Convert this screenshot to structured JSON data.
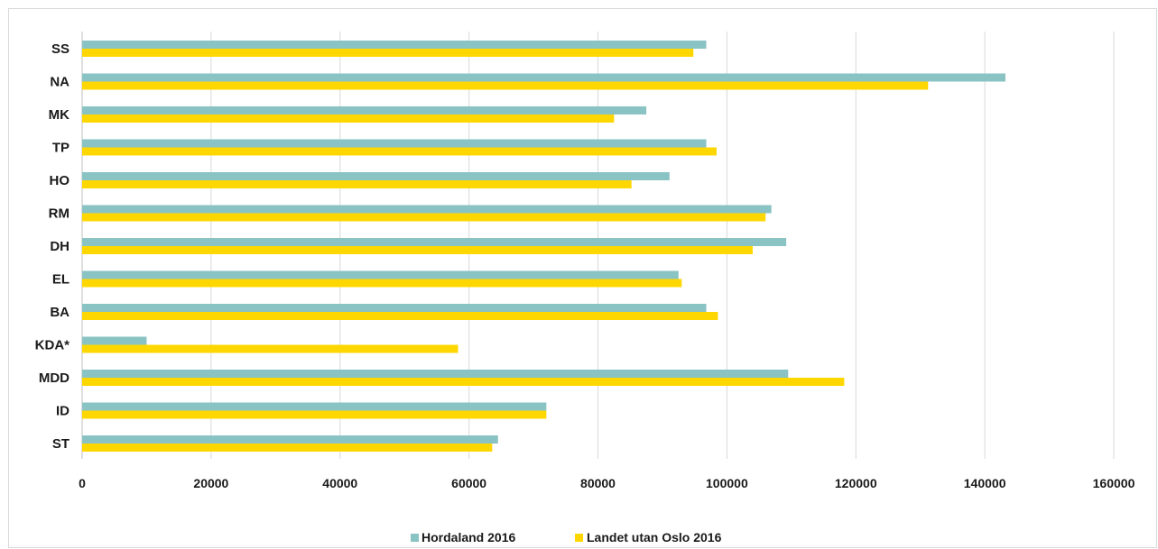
{
  "colors": {
    "series1": "#8ac3c4",
    "series2": "#ffd700",
    "grid": "#d9d9d9",
    "axis": "#bfbfbf"
  },
  "chart_data": {
    "type": "bar",
    "orientation": "horizontal",
    "categories": [
      "SS",
      "NA",
      "MK",
      "TP",
      "HO",
      "RM",
      "DH",
      "EL",
      "BA",
      "KDA*",
      "MDD",
      "ID",
      "ST"
    ],
    "series": [
      {
        "name": "Hordaland 2016",
        "values": [
          96800,
          143200,
          87500,
          96800,
          91100,
          106900,
          109200,
          92500,
          96800,
          10000,
          109500,
          72000,
          64500
        ]
      },
      {
        "name": "Landet utan Oslo 2016",
        "values": [
          94800,
          131200,
          82500,
          98400,
          85200,
          106000,
          104000,
          93000,
          98600,
          58300,
          118200,
          72000,
          63600
        ]
      }
    ],
    "xlim": [
      0,
      160000
    ],
    "xticks": [
      "0",
      "20000",
      "40000",
      "60000",
      "80000",
      "100000",
      "120000",
      "140000",
      "160000"
    ],
    "grid": true,
    "legend": "bottom"
  }
}
